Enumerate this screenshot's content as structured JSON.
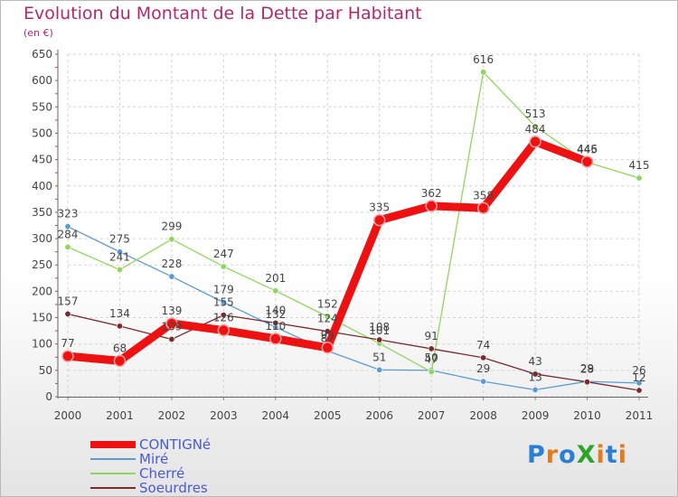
{
  "title": "Evolution du Montant de la Dette par Habitant",
  "subtitle": "(en €)",
  "logo": {
    "text": "ProXiti",
    "letters": [
      "P",
      "r",
      "o",
      "X",
      "i",
      "t",
      "i"
    ],
    "colors": [
      "#2a7fd4",
      "#e07b1e",
      "#2a7fd4",
      "#2aa52a",
      "#e07b1e",
      "#2a7fd4",
      "#e07b1e"
    ]
  },
  "chart_data": {
    "type": "line",
    "title": "Evolution du Montant de la Dette par Habitant",
    "subtitle": "(en €)",
    "xlabel": "",
    "ylabel": "",
    "x": [
      "2000",
      "2001",
      "2002",
      "2003",
      "2004",
      "2005",
      "2006",
      "2007",
      "2008",
      "2009",
      "2010",
      "2011"
    ],
    "ylim": [
      0,
      650
    ],
    "yticks": [
      0,
      50,
      100,
      150,
      200,
      250,
      300,
      350,
      400,
      450,
      500,
      550,
      600,
      650
    ],
    "grid": true,
    "legend_position": "bottom-left",
    "series": [
      {
        "name": "Miré",
        "color": "#5b9bd5",
        "values": [
          323,
          275,
          228,
          179,
          132,
          87,
          51,
          50,
          29,
          13,
          29,
          26
        ],
        "labels": [
          "323",
          "275",
          "228",
          "179",
          "132",
          "87",
          "51",
          "50",
          "29",
          "13",
          "29",
          "26"
        ]
      },
      {
        "name": "Cherré",
        "color": "#8fd65a",
        "values": [
          284,
          241,
          299,
          247,
          201,
          152,
          101,
          47,
          616,
          513,
          445,
          415
        ],
        "labels": [
          "284",
          "241",
          "299",
          "247",
          "201",
          "152",
          "101",
          "47",
          "616",
          "513",
          "445",
          "415"
        ]
      },
      {
        "name": "Soeurdres",
        "color": "#7a2a2a",
        "values": [
          157,
          134,
          109,
          155,
          140,
          124,
          108,
          91,
          74,
          43,
          28,
          12
        ],
        "labels": [
          "157",
          "134",
          "109",
          "155",
          "140",
          "124",
          "108",
          "91",
          "74",
          "43",
          "28",
          "12"
        ]
      },
      {
        "name": "CONTIGNé",
        "color": "#ee1111",
        "values": [
          77,
          68,
          139,
          126,
          110,
          93,
          335,
          362,
          358,
          484,
          446,
          null
        ],
        "labels": [
          "77",
          "68",
          "139",
          "126",
          "110",
          "93",
          "335",
          "362",
          "358",
          "484",
          "446",
          ""
        ]
      }
    ]
  },
  "legend": [
    {
      "name": "CONTIGNé",
      "color": "#ee1111",
      "thick": true
    },
    {
      "name": "Miré",
      "color": "#5b9bd5",
      "thick": false
    },
    {
      "name": "Cherré",
      "color": "#8fd65a",
      "thick": false
    },
    {
      "name": "Soeurdres",
      "color": "#7a2a2a",
      "thick": false
    }
  ]
}
